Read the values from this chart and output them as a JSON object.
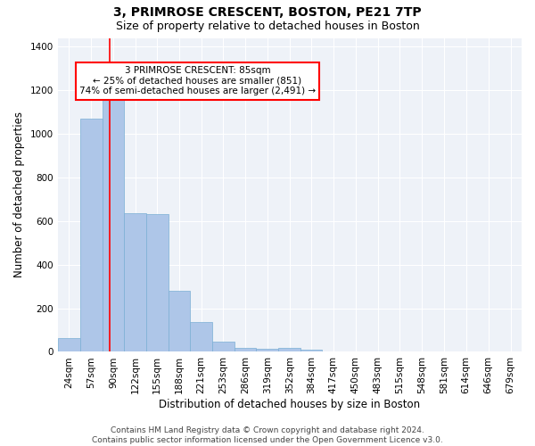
{
  "title": "3, PRIMROSE CRESCENT, BOSTON, PE21 7TP",
  "subtitle": "Size of property relative to detached houses in Boston",
  "xlabel": "Distribution of detached houses by size in Boston",
  "ylabel": "Number of detached properties",
  "bar_color": "#aec6e8",
  "bar_edge_color": "#7bafd4",
  "background_color": "#eef2f8",
  "grid_color": "#ffffff",
  "red_line_x": 85,
  "categories": [
    "24sqm",
    "57sqm",
    "90sqm",
    "122sqm",
    "155sqm",
    "188sqm",
    "221sqm",
    "253sqm",
    "286sqm",
    "319sqm",
    "352sqm",
    "384sqm",
    "417sqm",
    "450sqm",
    "483sqm",
    "515sqm",
    "548sqm",
    "581sqm",
    "614sqm",
    "646sqm",
    "679sqm"
  ],
  "bin_edges": [
    7.5,
    40.5,
    73.5,
    106.5,
    138.5,
    171.5,
    204.5,
    236.5,
    269.5,
    302.5,
    335.5,
    368.5,
    400.5,
    433.5,
    466.5,
    499.5,
    531.5,
    564.5,
    597.5,
    630.5,
    663.5,
    696.5
  ],
  "values": [
    65,
    1070,
    1160,
    635,
    630,
    280,
    135,
    45,
    20,
    15,
    20,
    10,
    0,
    0,
    0,
    0,
    0,
    0,
    0,
    0,
    0
  ],
  "ylim": [
    0,
    1440
  ],
  "xlim": [
    7.5,
    696.5
  ],
  "annotation_text": "3 PRIMROSE CRESCENT: 85sqm\n← 25% of detached houses are smaller (851)\n74% of semi-detached houses are larger (2,491) →",
  "footer": "Contains HM Land Registry data © Crown copyright and database right 2024.\nContains public sector information licensed under the Open Government Licence v3.0.",
  "title_fontsize": 10,
  "subtitle_fontsize": 9,
  "xlabel_fontsize": 8.5,
  "ylabel_fontsize": 8.5,
  "tick_fontsize": 7.5,
  "annotation_fontsize": 7.5,
  "footer_fontsize": 6.5
}
